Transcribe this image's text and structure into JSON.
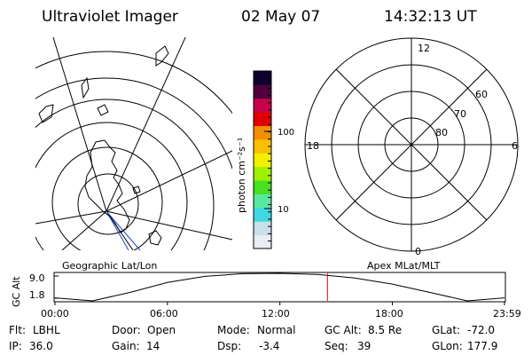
{
  "header": {
    "instrument": "Ultraviolet Imager",
    "date": "02 May 07",
    "time": "14:32:13 UT"
  },
  "left_panel": {
    "caption": "Geographic Lat/Lon"
  },
  "right_panel": {
    "caption": "Apex MLat/MLT",
    "mlt_labels": {
      "top": "12",
      "bottom": "0",
      "left": "18",
      "right": "6"
    },
    "lat_labels": [
      "60",
      "70",
      "80"
    ]
  },
  "colorbar": {
    "unit_label": "photon cm⁻²s⁻¹",
    "tick_labels": [
      "100",
      "10"
    ],
    "colors": [
      "#e8eef4",
      "#c8e0e8",
      "#40d8e0",
      "#58e8a0",
      "#48e020",
      "#a0f000",
      "#f0f000",
      "#f8c000",
      "#f09000",
      "#e00000",
      "#c8004a",
      "#50003a",
      "#10002e"
    ]
  },
  "orbit_plot": {
    "ylabel": "GC Alt",
    "y_ticks": [
      "9.0",
      "1.8"
    ],
    "x_ticks": [
      "00:00",
      "06:00",
      "12:00",
      "18:00",
      "23:59"
    ],
    "current_marker_time": "14:32:13"
  },
  "chart_data": {
    "type": "line",
    "title": "",
    "xlabel": "",
    "ylabel": "GC Alt",
    "x": [
      "00:00",
      "02:00",
      "04:00",
      "06:00",
      "08:00",
      "10:00",
      "12:00",
      "14:00",
      "16:00",
      "18:00",
      "20:00",
      "22:00",
      "23:59"
    ],
    "y": [
      2.6,
      1.8,
      4.0,
      6.6,
      8.2,
      8.9,
      9.0,
      8.7,
      7.8,
      6.2,
      4.0,
      1.8,
      2.6
    ],
    "ylim": [
      1.8,
      9.0
    ],
    "grid": false
  },
  "info": {
    "row1": [
      {
        "label": "Flt:",
        "value": "LBHL"
      },
      {
        "label": "Door:",
        "value": "Open"
      },
      {
        "label": "Mode:",
        "value": "Normal"
      },
      {
        "label": "GC Alt:",
        "value": "8.5 Re"
      },
      {
        "label": "GLat:",
        "value": "-72.0"
      }
    ],
    "row2": [
      {
        "label": "IP:",
        "value": "36.0"
      },
      {
        "label": "Gain:",
        "value": "14"
      },
      {
        "label": "Dsp:",
        "value": "-3.4"
      },
      {
        "label": "Seq:",
        "value": "39"
      },
      {
        "label": "GLon:",
        "value": "177.9"
      }
    ]
  }
}
